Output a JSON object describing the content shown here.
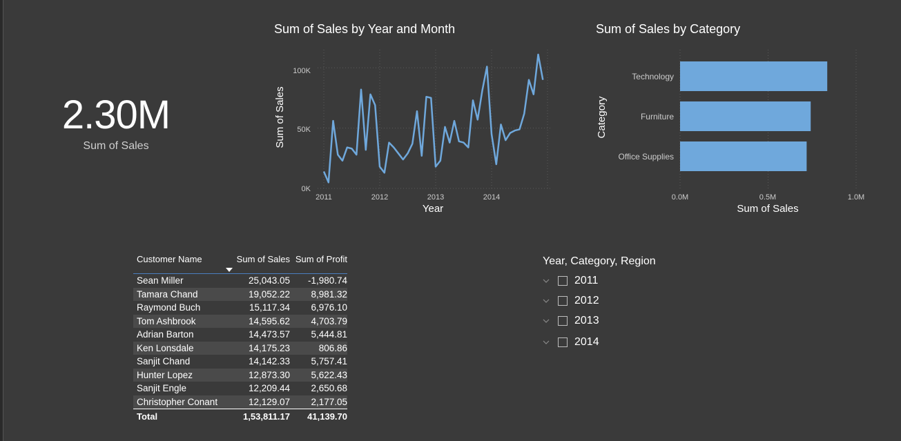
{
  "kpi": {
    "value": "2.30M",
    "label": "Sum of Sales"
  },
  "line_chart": {
    "title": "Sum of Sales by Year and Month",
    "xlabel": "Year",
    "ylabel": "Sum of Sales",
    "yticks": [
      "100K",
      "50K",
      "0K"
    ],
    "xticks": [
      "2011",
      "2012",
      "2013",
      "2014"
    ],
    "color": "#6fa8dc"
  },
  "bar_chart": {
    "title": "Sum of Sales by Category",
    "xlabel": "Sum of Sales",
    "ylabel": "Category",
    "xticks": [
      "0.0M",
      "0.5M",
      "1.0M"
    ],
    "color": "#6fa8dc"
  },
  "chart_data": [
    {
      "type": "line",
      "title": "Sum of Sales by Year and Month",
      "xlabel": "Year",
      "ylabel": "Sum of Sales",
      "ylim": [
        0,
        100000
      ],
      "x": [
        "2011-01",
        "2011-02",
        "2011-03",
        "2011-04",
        "2011-05",
        "2011-06",
        "2011-07",
        "2011-08",
        "2011-09",
        "2011-10",
        "2011-11",
        "2011-12",
        "2012-01",
        "2012-02",
        "2012-03",
        "2012-04",
        "2012-05",
        "2012-06",
        "2012-07",
        "2012-08",
        "2012-09",
        "2012-10",
        "2012-11",
        "2012-12",
        "2013-01",
        "2013-02",
        "2013-03",
        "2013-04",
        "2013-05",
        "2013-06",
        "2013-07",
        "2013-08",
        "2013-09",
        "2013-10",
        "2013-11",
        "2013-12",
        "2014-01",
        "2014-02",
        "2014-03",
        "2014-04",
        "2014-05",
        "2014-06",
        "2014-07",
        "2014-08",
        "2014-09",
        "2014-10",
        "2014-11",
        "2014-12"
      ],
      "series": [
        {
          "values": [
            14000,
            5000,
            56000,
            28000,
            23000,
            34000,
            33000,
            28000,
            82000,
            32000,
            78000,
            69000,
            18000,
            13000,
            38000,
            34000,
            29000,
            24000,
            29000,
            37000,
            64000,
            27000,
            76000,
            75000,
            18000,
            23000,
            51000,
            38000,
            56000,
            39000,
            38000,
            34000,
            73000,
            57000,
            81000,
            101000,
            45000,
            20000,
            53000,
            40000,
            46000,
            48000,
            49000,
            62000,
            90000,
            78000,
            111000,
            90000
          ]
        }
      ]
    },
    {
      "type": "bar",
      "orientation": "horizontal",
      "title": "Sum of Sales by Category",
      "xlabel": "Sum of Sales",
      "ylabel": "Category",
      "xlim": [
        0,
        1000000
      ],
      "categories": [
        "Technology",
        "Furniture",
        "Office Supplies"
      ],
      "values": [
        836000,
        742000,
        719000
      ]
    }
  ],
  "table": {
    "headers": [
      "Customer Name",
      "Sum of Sales",
      "Sum of Profit"
    ],
    "rows": [
      [
        "Sean Miller",
        "25,043.05",
        "-1,980.74"
      ],
      [
        "Tamara Chand",
        "19,052.22",
        "8,981.32"
      ],
      [
        "Raymond Buch",
        "15,117.34",
        "6,976.10"
      ],
      [
        "Tom Ashbrook",
        "14,595.62",
        "4,703.79"
      ],
      [
        "Adrian Barton",
        "14,473.57",
        "5,444.81"
      ],
      [
        "Ken Lonsdale",
        "14,175.23",
        "806.86"
      ],
      [
        "Sanjit Chand",
        "14,142.33",
        "5,757.41"
      ],
      [
        "Hunter Lopez",
        "12,873.30",
        "5,622.43"
      ],
      [
        "Sanjit Engle",
        "12,209.44",
        "2,650.68"
      ],
      [
        "Christopher Conant",
        "12,129.07",
        "2,177.05"
      ]
    ],
    "total": [
      "Total",
      "1,53,811.17",
      "41,139.70"
    ]
  },
  "slicer": {
    "title": "Year, Category, Region",
    "items": [
      "2011",
      "2012",
      "2013",
      "2014"
    ]
  }
}
